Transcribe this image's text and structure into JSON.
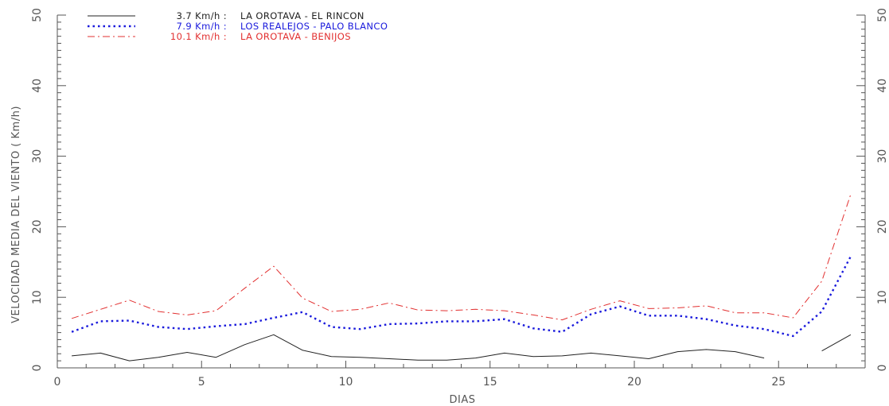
{
  "chart_data": {
    "type": "line",
    "title": "",
    "xlabel": "DIAS",
    "ylabel": "VELOCIDAD MEDIA DEL VIENTO ( Km/h)",
    "xlim": [
      0,
      28
    ],
    "ylim": [
      0,
      50
    ],
    "x_ticks": [
      0,
      5,
      10,
      15,
      20,
      25
    ],
    "y_ticks": [
      0,
      10,
      20,
      30,
      40,
      50
    ],
    "grid": false,
    "legend_position": "top-left",
    "series": [
      {
        "name": "LA OROTAVA - EL RINCON",
        "mean_label": "3.7 Km/h :",
        "color": "#222222",
        "style": "solid",
        "x": [
          0.5,
          1.5,
          2.5,
          3.5,
          4.5,
          5.5,
          6.5,
          7.5,
          8.5,
          9.5,
          10.5,
          11.5,
          12.5,
          13.5,
          14.5,
          15.5,
          16.5,
          17.5,
          18.5,
          19.5,
          20.5,
          21.5,
          22.5,
          23.5,
          24.5,
          26.5,
          27.5
        ],
        "values": [
          1.7,
          2.1,
          1.0,
          1.5,
          2.2,
          1.5,
          3.3,
          4.7,
          2.5,
          1.6,
          1.5,
          1.3,
          1.1,
          1.1,
          1.4,
          2.1,
          1.6,
          1.7,
          2.1,
          1.7,
          1.3,
          2.3,
          2.6,
          2.3,
          1.4,
          2.4,
          4.7
        ],
        "gap_after_x": 24.5
      },
      {
        "name": "LOS REALEJOS - PALO BLANCO",
        "mean_label": "7.9 Km/h :",
        "color": "#1a1adc",
        "style": "dotted",
        "x": [
          0.5,
          1.5,
          2.5,
          3.5,
          4.5,
          5.5,
          6.5,
          7.5,
          8.5,
          9.5,
          10.5,
          11.5,
          12.5,
          13.5,
          14.5,
          15.5,
          16.5,
          17.5,
          18.5,
          19.5,
          20.5,
          21.5,
          22.5,
          23.5,
          24.5,
          25.5,
          26.5,
          27.5
        ],
        "values": [
          5.1,
          6.6,
          6.7,
          5.8,
          5.5,
          5.9,
          6.2,
          7.1,
          7.9,
          5.8,
          5.5,
          6.2,
          6.3,
          6.6,
          6.6,
          6.9,
          5.6,
          5.1,
          7.6,
          8.7,
          7.4,
          7.4,
          6.9,
          6.0,
          5.5,
          4.5,
          8.0,
          15.8
        ]
      },
      {
        "name": "LA OROTAVA - BENIJOS",
        "mean_label": "10.1 Km/h :",
        "color": "#e23030",
        "style": "dashdot",
        "x": [
          0.5,
          1.5,
          2.5,
          3.5,
          4.5,
          5.5,
          6.5,
          7.5,
          8.5,
          9.5,
          10.5,
          11.5,
          12.5,
          13.5,
          14.5,
          15.5,
          16.5,
          17.5,
          18.5,
          19.5,
          20.5,
          21.5,
          22.5,
          23.5,
          24.5,
          25.5,
          26.5,
          27.5
        ],
        "values": [
          7.0,
          8.3,
          9.6,
          8.0,
          7.5,
          8.1,
          11.3,
          14.4,
          9.9,
          8.0,
          8.3,
          9.2,
          8.2,
          8.1,
          8.3,
          8.1,
          7.5,
          6.8,
          8.3,
          9.5,
          8.4,
          8.5,
          8.8,
          7.8,
          7.8,
          7.1,
          12.3,
          24.6
        ]
      }
    ]
  }
}
